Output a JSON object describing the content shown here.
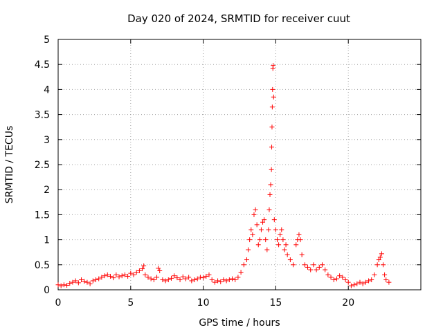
{
  "chart_data": {
    "type": "scatter",
    "title": "Day 020 of 2024, SRMTID for receiver cuut",
    "xlabel": "GPS time / hours",
    "ylabel": "SRMTID / TECUs",
    "xlim": [
      0,
      25
    ],
    "ylim": [
      0,
      5
    ],
    "xticks": [
      0,
      5,
      10,
      15,
      20
    ],
    "xtick_labels": [
      "0",
      "5",
      "10",
      "15",
      "20"
    ],
    "yticks": [
      0,
      0.5,
      1,
      1.5,
      2,
      2.5,
      3,
      3.5,
      4,
      4.5,
      5
    ],
    "ytick_labels": [
      "0",
      "0.5",
      "1",
      "1.5",
      "2",
      "2.5",
      "3",
      "3.5",
      "4",
      "4.5",
      "5"
    ],
    "grid": true,
    "marker": "plus",
    "color": "#ff0000",
    "series": [
      {
        "name": "SRMTID",
        "points": [
          [
            0.0,
            0.1
          ],
          [
            0.2,
            0.08
          ],
          [
            0.4,
            0.1
          ],
          [
            0.6,
            0.09
          ],
          [
            0.8,
            0.13
          ],
          [
            1.0,
            0.15
          ],
          [
            1.2,
            0.18
          ],
          [
            1.4,
            0.14
          ],
          [
            1.6,
            0.2
          ],
          [
            1.8,
            0.17
          ],
          [
            2.0,
            0.15
          ],
          [
            2.2,
            0.12
          ],
          [
            2.4,
            0.18
          ],
          [
            2.6,
            0.2
          ],
          [
            2.8,
            0.22
          ],
          [
            3.0,
            0.25
          ],
          [
            3.2,
            0.28
          ],
          [
            3.4,
            0.3
          ],
          [
            3.6,
            0.27
          ],
          [
            3.8,
            0.24
          ],
          [
            4.0,
            0.3
          ],
          [
            4.2,
            0.26
          ],
          [
            4.4,
            0.28
          ],
          [
            4.6,
            0.3
          ],
          [
            4.8,
            0.27
          ],
          [
            5.0,
            0.33
          ],
          [
            5.2,
            0.3
          ],
          [
            5.4,
            0.35
          ],
          [
            5.6,
            0.38
          ],
          [
            5.8,
            0.42
          ],
          [
            5.9,
            0.48
          ],
          [
            6.0,
            0.3
          ],
          [
            6.2,
            0.25
          ],
          [
            6.4,
            0.22
          ],
          [
            6.6,
            0.2
          ],
          [
            6.8,
            0.25
          ],
          [
            6.9,
            0.43
          ],
          [
            7.0,
            0.38
          ],
          [
            7.2,
            0.2
          ],
          [
            7.4,
            0.18
          ],
          [
            7.6,
            0.2
          ],
          [
            7.8,
            0.23
          ],
          [
            8.0,
            0.28
          ],
          [
            8.2,
            0.24
          ],
          [
            8.4,
            0.2
          ],
          [
            8.6,
            0.26
          ],
          [
            8.8,
            0.22
          ],
          [
            9.0,
            0.25
          ],
          [
            9.2,
            0.18
          ],
          [
            9.4,
            0.2
          ],
          [
            9.6,
            0.22
          ],
          [
            9.8,
            0.25
          ],
          [
            10.0,
            0.24
          ],
          [
            10.2,
            0.27
          ],
          [
            10.4,
            0.3
          ],
          [
            10.6,
            0.2
          ],
          [
            10.8,
            0.15
          ],
          [
            11.0,
            0.18
          ],
          [
            11.2,
            0.16
          ],
          [
            11.4,
            0.2
          ],
          [
            11.6,
            0.18
          ],
          [
            11.8,
            0.2
          ],
          [
            12.0,
            0.22
          ],
          [
            12.2,
            0.2
          ],
          [
            12.4,
            0.25
          ],
          [
            12.6,
            0.35
          ],
          [
            12.8,
            0.5
          ],
          [
            13.0,
            0.6
          ],
          [
            13.1,
            0.8
          ],
          [
            13.2,
            1.0
          ],
          [
            13.3,
            1.2
          ],
          [
            13.4,
            1.1
          ],
          [
            13.5,
            1.5
          ],
          [
            13.6,
            1.6
          ],
          [
            13.7,
            1.3
          ],
          [
            13.8,
            0.9
          ],
          [
            13.9,
            1.0
          ],
          [
            14.0,
            1.2
          ],
          [
            14.1,
            1.35
          ],
          [
            14.2,
            1.4
          ],
          [
            14.3,
            1.0
          ],
          [
            14.4,
            0.8
          ],
          [
            14.5,
            1.2
          ],
          [
            14.55,
            1.6
          ],
          [
            14.6,
            1.9
          ],
          [
            14.65,
            2.1
          ],
          [
            14.7,
            2.4
          ],
          [
            14.72,
            2.85
          ],
          [
            14.74,
            3.25
          ],
          [
            14.76,
            3.65
          ],
          [
            14.78,
            4.0
          ],
          [
            14.8,
            4.42
          ],
          [
            14.82,
            4.48
          ],
          [
            14.85,
            3.85
          ],
          [
            14.9,
            1.4
          ],
          [
            15.0,
            1.2
          ],
          [
            15.1,
            1.0
          ],
          [
            15.2,
            0.9
          ],
          [
            15.3,
            1.1
          ],
          [
            15.4,
            1.2
          ],
          [
            15.5,
            1.0
          ],
          [
            15.6,
            0.8
          ],
          [
            15.7,
            0.9
          ],
          [
            15.8,
            0.7
          ],
          [
            16.0,
            0.6
          ],
          [
            16.2,
            0.5
          ],
          [
            16.4,
            0.9
          ],
          [
            16.5,
            1.0
          ],
          [
            16.6,
            1.1
          ],
          [
            16.7,
            1.0
          ],
          [
            16.8,
            0.7
          ],
          [
            17.0,
            0.5
          ],
          [
            17.2,
            0.45
          ],
          [
            17.4,
            0.4
          ],
          [
            17.6,
            0.5
          ],
          [
            17.8,
            0.4
          ],
          [
            18.0,
            0.45
          ],
          [
            18.2,
            0.5
          ],
          [
            18.4,
            0.4
          ],
          [
            18.6,
            0.3
          ],
          [
            18.8,
            0.25
          ],
          [
            19.0,
            0.2
          ],
          [
            19.2,
            0.22
          ],
          [
            19.4,
            0.28
          ],
          [
            19.6,
            0.25
          ],
          [
            19.8,
            0.2
          ],
          [
            20.0,
            0.15
          ],
          [
            20.2,
            0.08
          ],
          [
            20.4,
            0.1
          ],
          [
            20.6,
            0.12
          ],
          [
            20.8,
            0.15
          ],
          [
            21.0,
            0.12
          ],
          [
            21.2,
            0.15
          ],
          [
            21.4,
            0.18
          ],
          [
            21.6,
            0.2
          ],
          [
            21.8,
            0.3
          ],
          [
            22.0,
            0.5
          ],
          [
            22.1,
            0.6
          ],
          [
            22.2,
            0.65
          ],
          [
            22.3,
            0.72
          ],
          [
            22.4,
            0.5
          ],
          [
            22.5,
            0.3
          ],
          [
            22.6,
            0.2
          ],
          [
            22.8,
            0.15
          ]
        ]
      }
    ]
  }
}
